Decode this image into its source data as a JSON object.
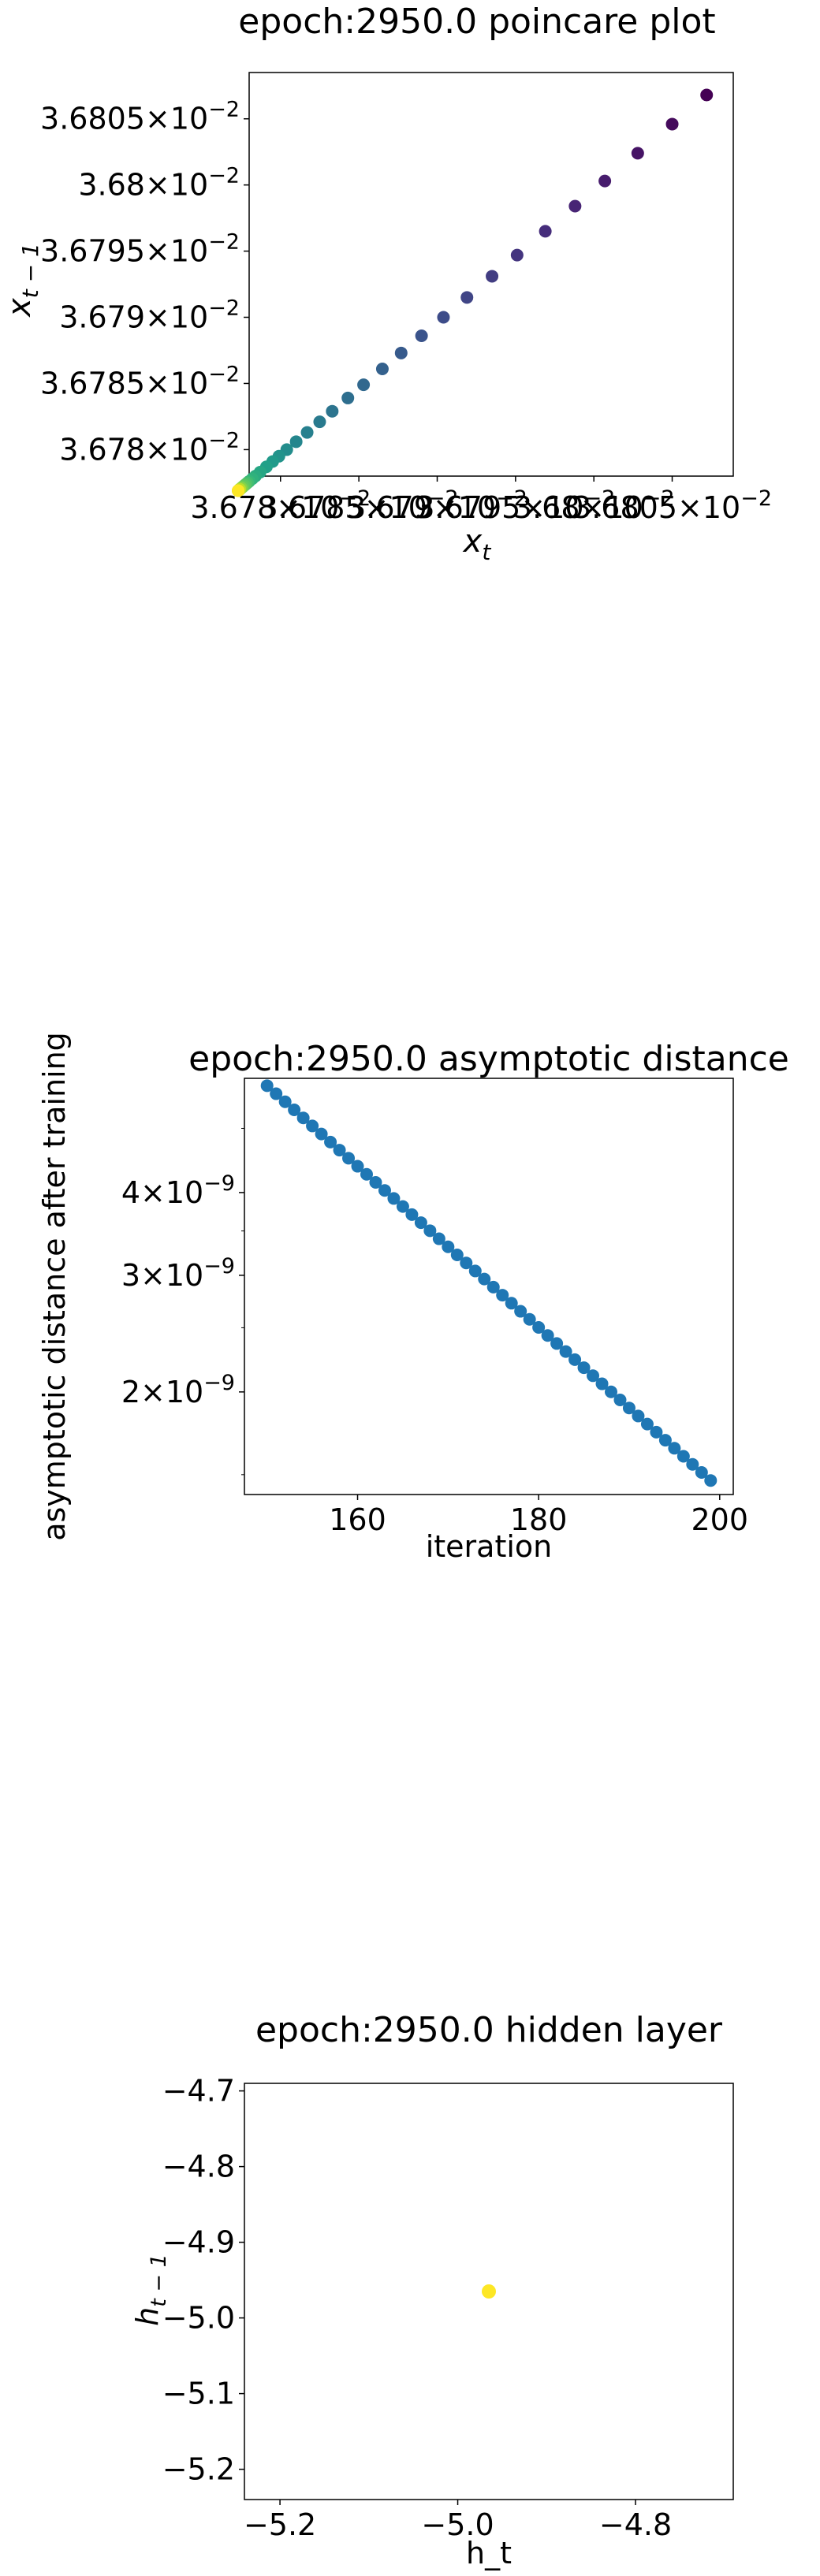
{
  "chart_data": [
    {
      "type": "scatter",
      "title": "epoch:2950.0 poincare plot",
      "xlabel": "x_t",
      "ylabel": "x_{t-1}",
      "xscale": "log",
      "yscale": "log",
      "xlim": [
        0.036778,
        0.0368089
      ],
      "ylim": [
        0.036778,
        0.0368085
      ],
      "yticks": [
        {
          "value": 0.03678,
          "mantissa": "3.678"
        },
        {
          "value": 0.036785,
          "mantissa": "3.6785"
        },
        {
          "value": 0.03679,
          "mantissa": "3.679"
        },
        {
          "value": 0.036795,
          "mantissa": "3.6795"
        },
        {
          "value": 0.0368,
          "mantissa": "3.68"
        },
        {
          "value": 0.036805,
          "mantissa": "3.6805"
        }
      ],
      "xticks": [
        {
          "value": 0.03678,
          "mantissa": "3.678"
        },
        {
          "value": 0.036785,
          "mantissa": "3.6785"
        },
        {
          "value": 0.03679,
          "mantissa": "3.679"
        },
        {
          "value": 0.036795,
          "mantissa": "3.6795"
        },
        {
          "value": 0.0368,
          "mantissa": "3.68"
        },
        {
          "value": 0.036805,
          "mantissa": "3.6805"
        }
      ],
      "tick_exponent": "−2",
      "colormap": "viridis",
      "point_color_order": "index",
      "points": {
        "x": [
          0.0368072,
          0.036805,
          0.0368028,
          0.0368007,
          0.0367988,
          0.0367969,
          0.0367951,
          0.0367935,
          0.0367919,
          0.0367904,
          0.036789,
          0.0367877,
          0.0367865,
          0.0367853,
          0.0367843,
          0.0367833,
          0.0367825,
          0.0367817,
          0.036781,
          0.0367804,
          0.0367799,
          0.0367795,
          0.0367791,
          0.0367787,
          0.0367784,
          0.0367782,
          0.036778,
          0.0367779,
          0.0367778,
          0.0367777,
          0.0367776,
          0.0367775,
          0.0367775,
          0.0367774,
          0.0367774,
          0.0367774,
          0.0367773,
          0.0367773,
          0.0367773,
          0.0367773
        ],
        "y": [
          0.0368068,
          0.0368046,
          0.0368024,
          0.0368003,
          0.0367984,
          0.0367965,
          0.0367947,
          0.0367931,
          0.0367915,
          0.03679,
          0.0367886,
          0.0367873,
          0.0367861,
          0.0367849,
          0.0367839,
          0.0367829,
          0.0367821,
          0.0367813,
          0.0367806,
          0.03678,
          0.0367795,
          0.0367791,
          0.0367787,
          0.0367783,
          0.036778,
          0.0367778,
          0.0367776,
          0.0367775,
          0.0367774,
          0.0367773,
          0.0367772,
          0.0367771,
          0.0367771,
          0.036777,
          0.036777,
          0.036777,
          0.0367769,
          0.0367769,
          0.0367769,
          0.0367769
        ]
      }
    },
    {
      "type": "scatter",
      "title": "epoch:2950.0 asymptotic distance",
      "xlabel": "iteration",
      "ylabel": "asymptotic distance after training",
      "yscale": "log",
      "xlim": [
        147.5,
        201.5
      ],
      "ylim": [
        1.4e-09,
        5.95e-09
      ],
      "xticks": [
        160,
        180,
        200
      ],
      "yticks": [
        {
          "value": 2e-09,
          "mantissa": "2"
        },
        {
          "value": 3e-09,
          "mantissa": "3"
        },
        {
          "value": 4e-09,
          "mantissa": "4"
        }
      ],
      "tick_exponent": "−9",
      "color": "#1f77b4",
      "points": {
        "x_start": 150,
        "x_end": 199,
        "y_start": 5.8e-09,
        "y_end": 1.47e-09
      }
    },
    {
      "type": "scatter",
      "title": "epoch:2950.0 hidden layer",
      "xlabel": "h_t",
      "ylabel": "h_{t-1}",
      "xlim": [
        -5.24,
        -4.69
      ],
      "ylim": [
        -5.24,
        -4.69
      ],
      "xticks": [
        {
          "value": -5.2,
          "label": "−5.2"
        },
        {
          "value": -5.0,
          "label": "−5.0"
        },
        {
          "value": -4.8,
          "label": "−4.8"
        }
      ],
      "yticks": [
        {
          "value": -4.7,
          "label": "−4.7"
        },
        {
          "value": -4.8,
          "label": "−4.8"
        },
        {
          "value": -4.9,
          "label": "−4.9"
        },
        {
          "value": -5.0,
          "label": "−5.0"
        },
        {
          "value": -5.1,
          "label": "−5.1"
        },
        {
          "value": -5.2,
          "label": "−5.2"
        }
      ],
      "color": "#fde725",
      "points": {
        "x": [
          -4.965
        ],
        "y": [
          -4.965
        ]
      }
    }
  ]
}
